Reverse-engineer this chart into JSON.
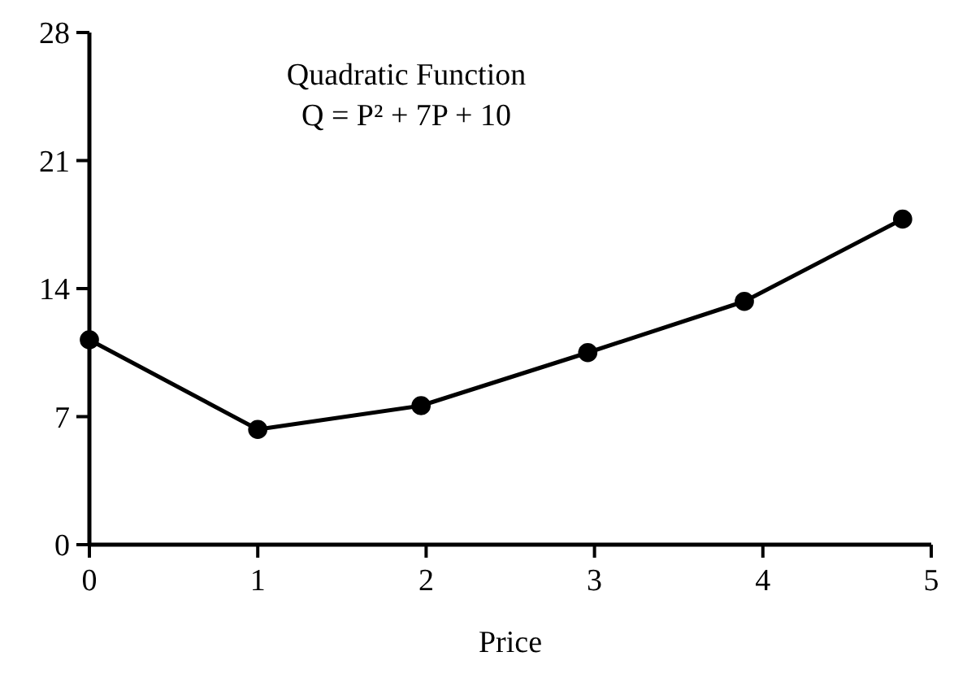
{
  "chart_data": {
    "type": "line",
    "title": "Quadratic Function",
    "subtitle": "Q = P² + 7P + 10",
    "xlabel": "Price",
    "x": [
      0,
      1,
      1.97,
      2.96,
      3.89,
      4.83
    ],
    "series": [
      {
        "color": "#000000",
        "values": [
          11.2,
          6.3,
          7.6,
          10.5,
          13.3,
          17.8
        ]
      }
    ],
    "xlim": [
      0,
      5
    ],
    "xticks": [
      0,
      1,
      2,
      3,
      4,
      5
    ],
    "ylim": [
      0,
      28
    ],
    "yticks": [
      0,
      7,
      14,
      21,
      28
    ],
    "grid": false,
    "marker": "circle",
    "line_style": "solid"
  }
}
